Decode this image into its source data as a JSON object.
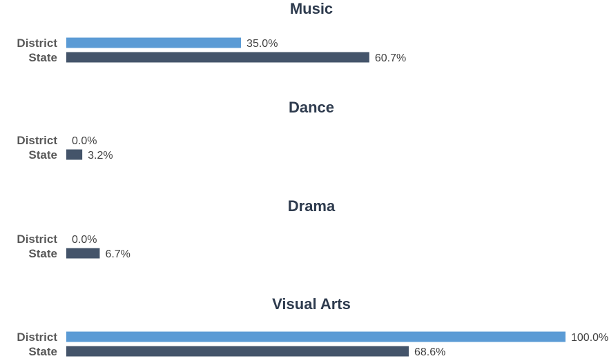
{
  "colors": {
    "district": "#5b9bd5",
    "state": "#44546a",
    "title": "#2e3b4e",
    "label": "#595959",
    "value": "#404040"
  },
  "chart_data": [
    {
      "type": "bar",
      "orientation": "horizontal",
      "title": "Music",
      "categories": [
        "District",
        "State"
      ],
      "values": [
        35.0,
        60.7
      ],
      "value_labels": [
        "35.0%",
        "60.7%"
      ],
      "xlim": [
        0,
        100
      ]
    },
    {
      "type": "bar",
      "orientation": "horizontal",
      "title": "Dance",
      "categories": [
        "District",
        "State"
      ],
      "values": [
        0.0,
        3.2
      ],
      "value_labels": [
        "0.0%",
        "3.2%"
      ],
      "xlim": [
        0,
        100
      ]
    },
    {
      "type": "bar",
      "orientation": "horizontal",
      "title": "Drama",
      "categories": [
        "District",
        "State"
      ],
      "values": [
        0.0,
        6.7
      ],
      "value_labels": [
        "0.0%",
        "6.7%"
      ],
      "xlim": [
        0,
        100
      ]
    },
    {
      "type": "bar",
      "orientation": "horizontal",
      "title": "Visual Arts",
      "categories": [
        "District",
        "State"
      ],
      "values": [
        100.0,
        68.6
      ],
      "value_labels": [
        "100.0%",
        "68.6%"
      ],
      "xlim": [
        0,
        100
      ]
    }
  ]
}
